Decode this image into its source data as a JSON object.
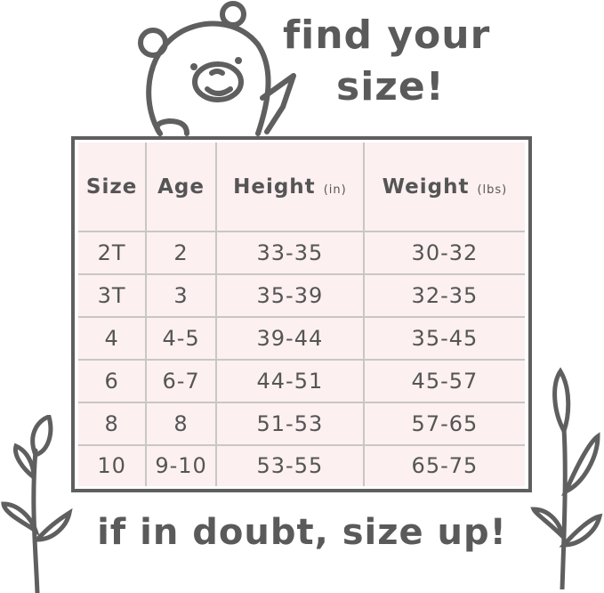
{
  "title": {
    "line1": "find your",
    "line2": "size!"
  },
  "table": {
    "headers": [
      {
        "label": "Size",
        "unit": ""
      },
      {
        "label": "Age",
        "unit": ""
      },
      {
        "label": "Height",
        "unit": "(in)"
      },
      {
        "label": "Weight",
        "unit": "(lbs)"
      }
    ],
    "rows": [
      [
        "2T",
        "2",
        "33-35",
        "30-32"
      ],
      [
        "3T",
        "3",
        "35-39",
        "32-35"
      ],
      [
        "4",
        "4-5",
        "39-44",
        "35-45"
      ],
      [
        "6",
        "6-7",
        "44-51",
        "45-57"
      ],
      [
        "8",
        "8",
        "51-53",
        "57-65"
      ],
      [
        "10",
        "9-10",
        "53-55",
        "65-75"
      ]
    ]
  },
  "footer": "if in doubt, size up!",
  "colors": {
    "ink": "#5f5f5f",
    "table_bg": "#fdf0f0",
    "grid": "#c9c6c6"
  },
  "icons": [
    "bear-illustration",
    "leaf-sprig-left",
    "leaf-sprig-right"
  ]
}
